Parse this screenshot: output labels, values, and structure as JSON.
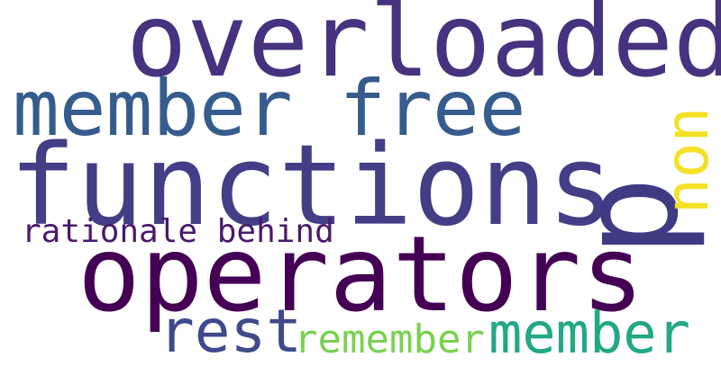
{
  "words": {
    "overloaded": {
      "text": "overloaded",
      "color": "#46327e"
    },
    "member_free": {
      "text": "member free",
      "color": "#365c8d"
    },
    "functions": {
      "text": "functions",
      "color": "#433e85"
    },
    "operators": {
      "text": "operators",
      "color": "#440154"
    },
    "p": {
      "text": "p",
      "color": "#3f3b83"
    },
    "non": {
      "text": "non",
      "color": "#f3e125"
    },
    "rationale_behind": {
      "text": "rationale behind",
      "color": "#481a6c"
    },
    "rest": {
      "text": "rest",
      "color": "#3e4a89"
    },
    "remember": {
      "text": "remember",
      "color": "#7ad151"
    },
    "member": {
      "text": "member",
      "color": "#22a884"
    }
  },
  "background_color": "#ffffff"
}
